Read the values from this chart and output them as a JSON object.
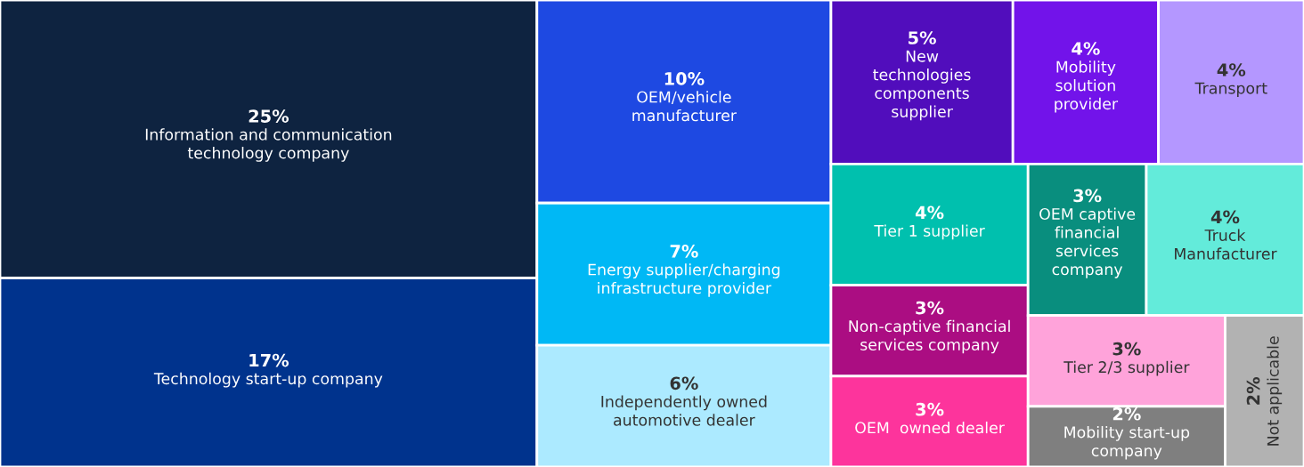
{
  "chart_data": {
    "type": "other",
    "categories": [
      "Information and communication\ntechnology company",
      "Technology start-up company",
      "OEM/vehicle\nmanufacturer",
      "Energy supplier/charging\ninfrastructure provider",
      "Independently owned\nautomotive dealer",
      "New\ntechnologies\ncomponents\nsupplier",
      "Mobility\nsolution\nprovider",
      "Transport",
      "Tier 1 supplier",
      "OEM captive\nfinancial\nservices\ncompany",
      "Truck\nManufacturer",
      "Non-captive financial\nservices company",
      "Tier 2/3 supplier",
      "Not applicable",
      "OEM  owned dealer",
      "Mobility start-up\ncompany"
    ],
    "values": [
      25,
      17,
      10,
      7,
      6,
      5,
      4,
      4,
      4,
      3,
      4,
      3,
      3,
      2,
      3,
      2
    ],
    "value_labels": [
      "25%",
      "17%",
      "10%",
      "7%",
      "6%",
      "5%",
      "4%",
      "4%",
      "4%",
      "3%",
      "4%",
      "3%",
      "3%",
      "2%",
      "3%",
      "2%"
    ],
    "colors": [
      "#0e2340",
      "#00338d",
      "#1e49e2",
      "#00b8f5",
      "#aceaff",
      "#510dbc",
      "#7213ea",
      "#b497ff",
      "#00c0ae",
      "#098e7e",
      "#63ebda",
      "#ab0d82",
      "#ffa3da",
      "#b2b2b2",
      "#fd349c",
      "#7f7f7f"
    ]
  }
}
